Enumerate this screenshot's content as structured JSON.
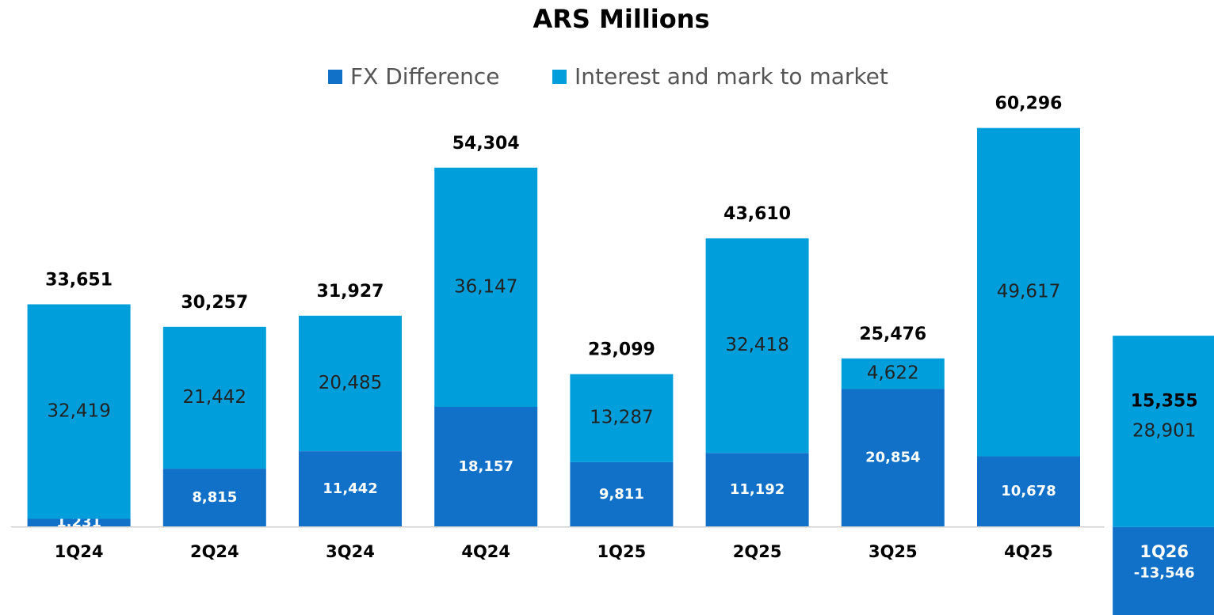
{
  "chart_data": {
    "type": "stacked_bar",
    "title": "ARS Millions",
    "categories": [
      "1Q24",
      "2Q24",
      "3Q24",
      "4Q24",
      "1Q25",
      "2Q25",
      "3Q25",
      "4Q25",
      "1Q26"
    ],
    "series": [
      {
        "name": "FX Difference",
        "color": "#1170c8",
        "values": [
          1231,
          8815,
          11442,
          18157,
          9811,
          11192,
          20854,
          10678,
          -13546
        ],
        "value_labels": [
          "1,231",
          "8,815",
          "11,442",
          "18,157",
          "9,811",
          "11,192",
          "20,854",
          "10,678",
          "-13,546"
        ]
      },
      {
        "name": "Interest and mark to market",
        "color": "#009fdb",
        "values": [
          32419,
          21442,
          20485,
          36147,
          13287,
          32418,
          4622,
          49617,
          28901
        ],
        "value_labels": [
          "32,419",
          "21,442",
          "20,485",
          "36,147",
          "13,287",
          "32,418",
          "4,622",
          "49,617",
          "28,901"
        ]
      }
    ],
    "totals": [
      33651,
      30257,
      31927,
      54304,
      23099,
      43610,
      25476,
      60296,
      15355
    ],
    "total_labels": [
      "33,651",
      "30,257",
      "31,927",
      "54,304",
      "23,099",
      "43,610",
      "25,476",
      "60,296",
      "15,355"
    ],
    "ylim": [
      -13300,
      66000
    ],
    "legend": "top"
  }
}
